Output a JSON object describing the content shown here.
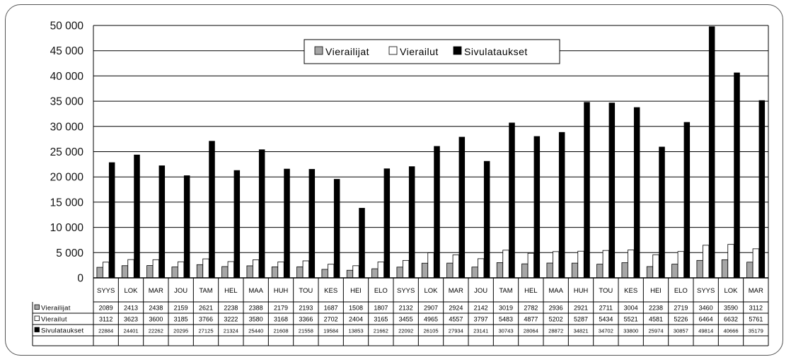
{
  "colors": {
    "Vierailijat": "#a6a6a6",
    "Vierailut": "#ffffff",
    "Sivulataukset": "#000000",
    "grid": "#000000"
  },
  "chart_data": {
    "type": "bar",
    "title": "",
    "xlabel": "",
    "ylabel": "",
    "ylim": [
      0,
      50000
    ],
    "yticks": [
      0,
      5000,
      10000,
      15000,
      20000,
      25000,
      30000,
      35000,
      40000,
      45000,
      50000
    ],
    "ytick_labels": [
      "0",
      "5 000",
      "10 000",
      "15 000",
      "20 000",
      "25 000",
      "30 000",
      "35 000",
      "40 000",
      "45 000",
      "50 000"
    ],
    "grid": true,
    "legend_position": "top-center",
    "categories": [
      "SYYS",
      "LOK",
      "MAR",
      "JOU",
      "TAM",
      "HEL",
      "MAA",
      "HUH",
      "TOU",
      "KES",
      "HEI",
      "ELO",
      "SYYS",
      "LOK",
      "MAR",
      "JOU",
      "TAM",
      "HEL",
      "MAA",
      "HUH",
      "TOU",
      "KES",
      "HEI",
      "ELO",
      "SYYS",
      "LOK",
      "MAR"
    ],
    "series": [
      {
        "name": "Vierailijat",
        "values": [
          2089,
          2413,
          2438,
          2159,
          2621,
          2238,
          2388,
          2179,
          2193,
          1687,
          1508,
          1807,
          2132,
          2907,
          2924,
          2142,
          3019,
          2782,
          2936,
          2921,
          2711,
          3004,
          2238,
          2719,
          3460,
          3590,
          3112
        ]
      },
      {
        "name": "Vierailut",
        "values": [
          3112,
          3623,
          3600,
          3185,
          3766,
          3222,
          3580,
          3168,
          3366,
          2702,
          2404,
          3165,
          3455,
          4965,
          4557,
          3797,
          5483,
          4877,
          5202,
          5287,
          5434,
          5521,
          4581,
          5226,
          6464,
          6632,
          5761
        ]
      },
      {
        "name": "Sivulataukset",
        "values": [
          22884,
          24401,
          22262,
          20295,
          27125,
          21324,
          25440,
          21608,
          21558,
          19584,
          13853,
          21662,
          22092,
          26105,
          27934,
          23141,
          30743,
          28064,
          28872,
          34821,
          34702,
          33800,
          25974,
          30857,
          49814,
          40666,
          35179
        ]
      }
    ]
  }
}
